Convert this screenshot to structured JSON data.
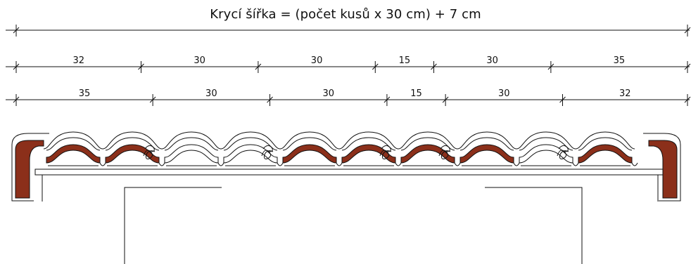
{
  "title": "Krycí šířka = (počet kusů x 30 cm) + 7 cm",
  "colors": {
    "line": "#111111",
    "tile": "#8b2f1a",
    "background": "#ffffff"
  },
  "dimension_rows": [
    {
      "segments": [
        "32",
        "30",
        "30",
        "15",
        "30",
        "35"
      ]
    },
    {
      "segments": [
        "35",
        "30",
        "30",
        "15",
        "30",
        "32"
      ]
    }
  ]
}
